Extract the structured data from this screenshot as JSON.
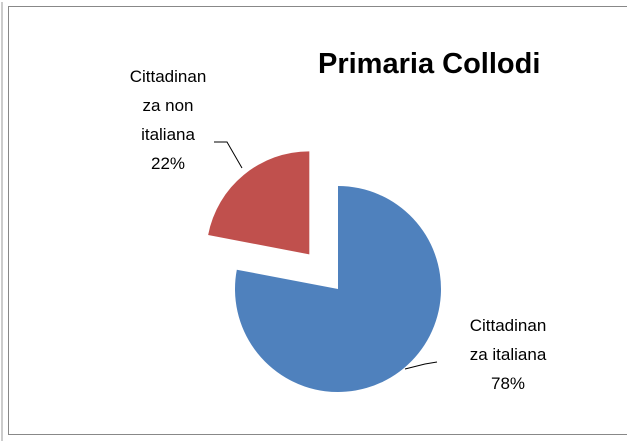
{
  "chart_data": {
    "type": "pie",
    "title": "Primaria Collodi",
    "categories": [
      "Cittadinanza italiana",
      "Cittadinanza non italiana"
    ],
    "values": [
      78,
      22
    ],
    "value_labels": [
      "78%",
      "22%"
    ],
    "colors": [
      "#4f81bd",
      "#c0504d"
    ]
  }
}
